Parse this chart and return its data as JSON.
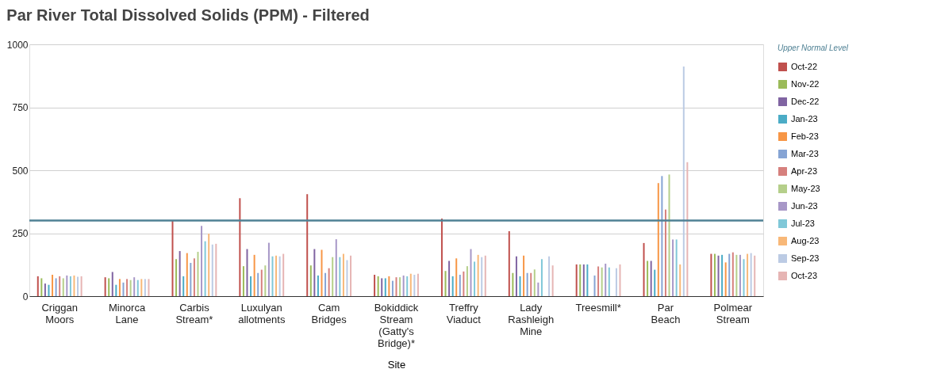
{
  "chart_data": {
    "type": "bar",
    "title": "Par River Total Dissolved Solids (PPM) - Filtered",
    "xlabel": "Site",
    "categories": [
      "Criggan Moors",
      "Minorca Lane",
      "Carbis Stream*",
      "Luxulyan allotments",
      "Cam Bridges",
      "Bokiddick Stream (Gatty's Bridge)*",
      "Treffry Viaduct",
      "Lady Rashleigh Mine",
      "Treesmill*",
      "Par Beach",
      "Polmear Stream"
    ],
    "series": [
      {
        "name": "Oct-22",
        "color": "#c0504d",
        "values": [
          79,
          75,
          300,
          389,
          405,
          85,
          308,
          258,
          126,
          211,
          168
        ]
      },
      {
        "name": "Nov-22",
        "color": "#9bbb59",
        "values": [
          71,
          71,
          147,
          119,
          122,
          79,
          100,
          92,
          126,
          140,
          168
        ]
      },
      {
        "name": "Dec-22",
        "color": "#8064a2",
        "values": [
          50,
          96,
          179,
          187,
          187,
          71,
          140,
          158,
          126,
          140,
          161
        ]
      },
      {
        "name": "Jan-23",
        "color": "#4bacc6",
        "values": [
          45,
          45,
          79,
          79,
          82,
          71,
          79,
          79,
          126,
          105,
          164
        ]
      },
      {
        "name": "Feb-23",
        "color": "#f79646",
        "values": [
          85,
          68,
          171,
          164,
          184,
          79,
          150,
          161,
          null,
          449,
          134
        ]
      },
      {
        "name": "Mar-23",
        "color": "#86a4d4",
        "values": [
          71,
          54,
          132,
          92,
          92,
          61,
          85,
          92,
          82,
          477,
          168
        ]
      },
      {
        "name": "Apr-23",
        "color": "#d6807d",
        "values": [
          79,
          68,
          150,
          105,
          111,
          75,
          98,
          92,
          118,
          344,
          174
        ]
      },
      {
        "name": "May-23",
        "color": "#b5cf8a",
        "values": [
          71,
          64,
          176,
          122,
          155,
          75,
          119,
          106,
          114,
          483,
          164
        ]
      },
      {
        "name": "Jun-23",
        "color": "#a797c7",
        "values": [
          82,
          75,
          279,
          212,
          226,
          82,
          187,
          54,
          129,
          225,
          164
        ]
      },
      {
        "name": "Jul-23",
        "color": "#80c8d8",
        "values": [
          79,
          64,
          218,
          158,
          155,
          79,
          137,
          147,
          114,
          225,
          147
        ]
      },
      {
        "name": "Aug-23",
        "color": "#f8b878",
        "values": [
          82,
          68,
          248,
          161,
          168,
          89,
          164,
          null,
          null,
          126,
          168
        ]
      },
      {
        "name": "Sep-23",
        "color": "#bccbe4",
        "values": [
          77,
          68,
          205,
          158,
          143,
          85,
          155,
          158,
          111,
          912,
          171
        ]
      },
      {
        "name": "Oct-23",
        "color": "#e6b5b4",
        "values": [
          79,
          68,
          208,
          168,
          161,
          89,
          161,
          122,
          126,
          532,
          161
        ]
      }
    ],
    "ylim": [
      0,
      1000
    ],
    "yticks": [
      0,
      250,
      500,
      750,
      1000
    ],
    "grid": "y",
    "legend": "right",
    "ref_lines": [
      {
        "axis": "y",
        "value": 300,
        "label": "Upper Normal Level",
        "color": "#4f8194"
      }
    ]
  }
}
